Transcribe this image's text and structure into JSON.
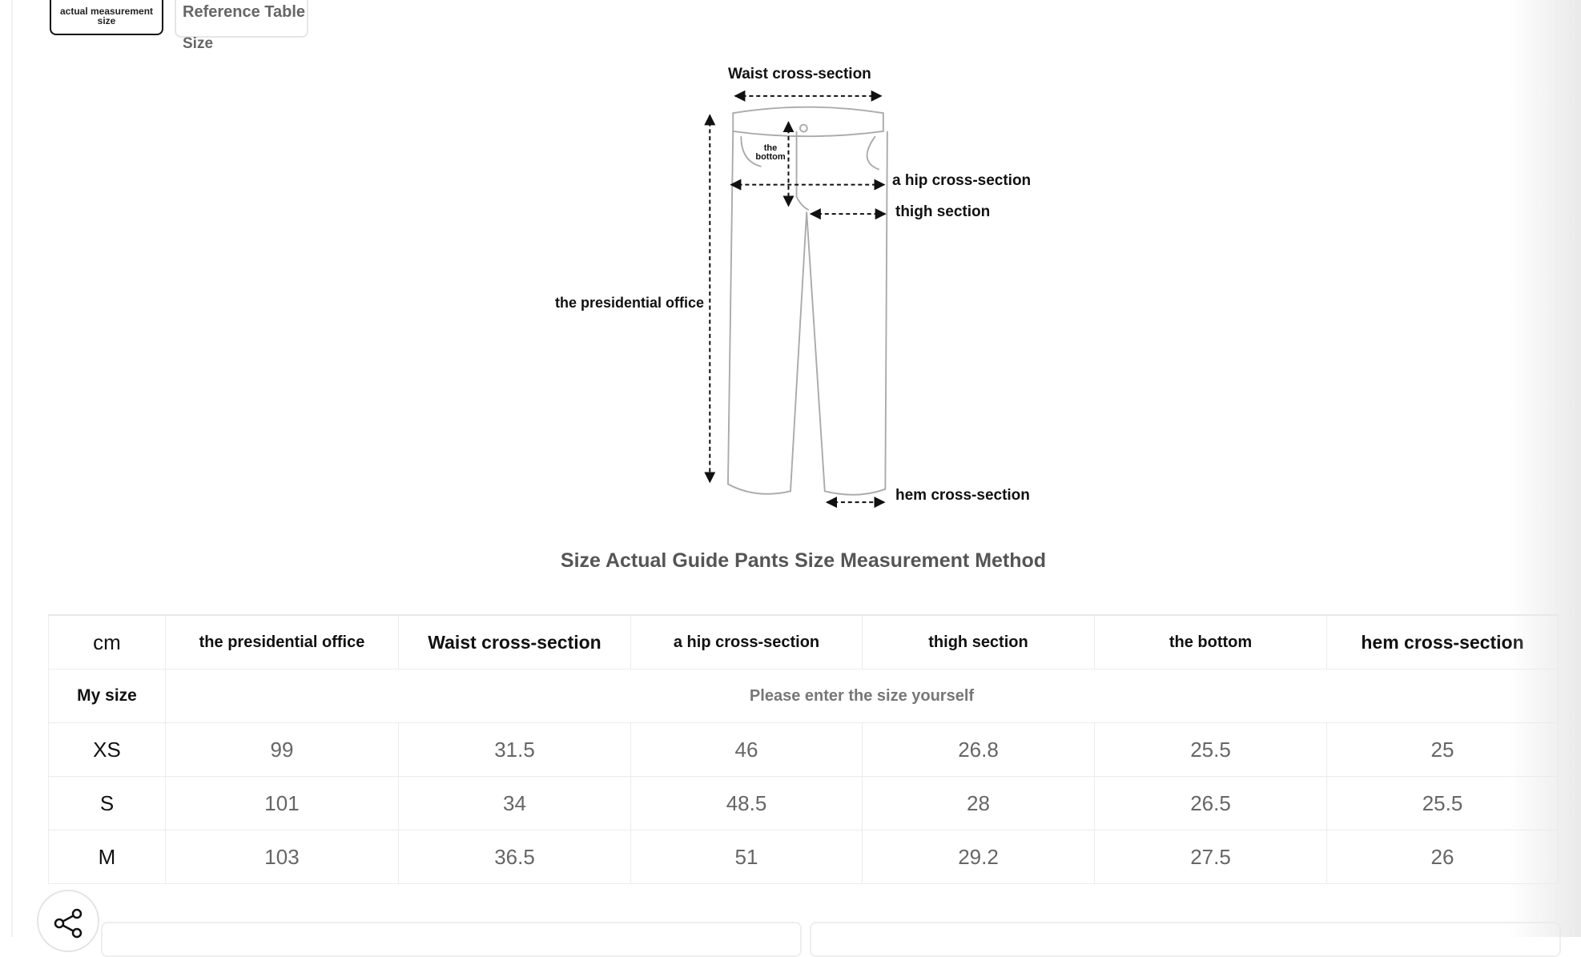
{
  "tabs": [
    {
      "label": "actual measurement size",
      "active": true
    },
    {
      "label": "Reference Table",
      "active": false
    }
  ],
  "size_label": "Size",
  "diagram": {
    "labels": {
      "waist": "Waist cross-section",
      "hip": "a hip cross-section",
      "thigh": "thigh section",
      "length": "the presidential office",
      "rise": "the bottom",
      "hem": "hem cross-section"
    }
  },
  "title": "Size Actual Guide Pants Size Measurement Method",
  "table": {
    "headers": [
      "cm",
      "the presidential office",
      "Waist cross-section",
      "a hip cross-section",
      "thigh section",
      "the bottom",
      "hem cross-section"
    ],
    "my_size": {
      "label": "My size",
      "note": "Please enter the size yourself"
    },
    "rows": [
      [
        "XS",
        "99",
        "31.5",
        "46",
        "26.8",
        "25.5",
        "25"
      ],
      [
        "S",
        "101",
        "34",
        "48.5",
        "28",
        "26.5",
        "25.5"
      ],
      [
        "M",
        "103",
        "36.5",
        "51",
        "29.2",
        "27.5",
        "26"
      ]
    ]
  },
  "share_icon": "share-icon"
}
